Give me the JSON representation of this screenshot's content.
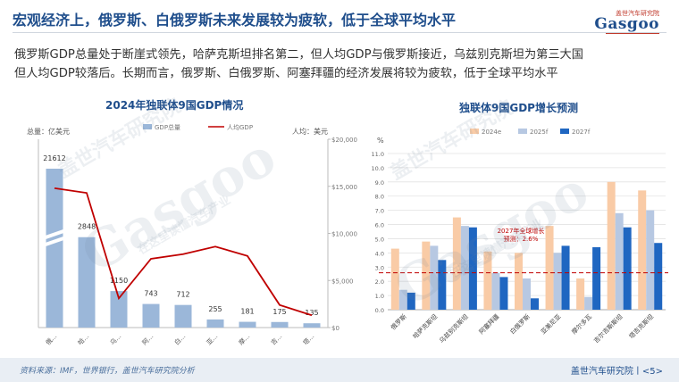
{
  "header": {
    "title": "宏观经济上，俄罗斯、白俄罗斯未来发展较为疲软，低于全球平均水平",
    "logo_top": "盖世汽车研究院",
    "logo_word": "Gasgoo"
  },
  "summary": [
    "俄罗斯GDP总量处于断崖式领先，哈萨克斯坦排名第二，但人均GDP与俄罗斯接近，乌兹别克斯坦为第三大国",
    "但人均GDP较落后。长期而言，俄罗斯、白俄罗斯、阿塞拜疆的经济发展将较为疲软，低于全球平均水平"
  ],
  "colors": {
    "title_blue": "#1f4e8c",
    "gdp_bar": "#9bb7d9",
    "per_capita_line": "#c00000",
    "growth_2024": "#f9cba6",
    "growth_2025": "#b7c8e2",
    "growth_2027": "#1f66c1",
    "avg_line": "#c00000"
  },
  "chart_data": [
    {
      "type": "bar",
      "title": "2024年独联体9国GDP情况",
      "left_axis_label": "总量：亿美元",
      "right_axis_label": "人均：美元",
      "legend": {
        "placement": "top",
        "entries": [
          "GDP总量",
          "人均GDP"
        ]
      },
      "categories": [
        "俄…",
        "哈…",
        "乌…",
        "阿…",
        "白…",
        "亚…",
        "摩…",
        "吉…",
        "塔…"
      ],
      "series": [
        {
          "name": "GDP总量",
          "type": "bar",
          "axis": "left",
          "values": [
            21612,
            2848,
            1150,
            743,
            712,
            255,
            181,
            175,
            135
          ],
          "labels": [
            "21612",
            "2848",
            "1150",
            "743",
            "712",
            "255",
            "181",
            "175",
            "135"
          ]
        },
        {
          "name": "人均GDP",
          "type": "line",
          "axis": "right",
          "values": [
            14800,
            14300,
            3100,
            7300,
            7800,
            8600,
            7600,
            2400,
            1300
          ]
        }
      ],
      "right_ticks": [
        "$0",
        "$5,000",
        "$10,000",
        "$15,000",
        "$20,000"
      ],
      "right_ylim": [
        0,
        20000
      ],
      "left_axis_break": true,
      "grid": false
    },
    {
      "type": "bar",
      "title": "独联体9国GDP增长预测",
      "ylabel": "%",
      "legend": {
        "placement": "top",
        "entries": [
          "2024e",
          "2025f",
          "2027f"
        ]
      },
      "categories": [
        "俄罗斯",
        "哈萨克斯坦",
        "乌兹别克斯坦",
        "阿塞拜疆",
        "白俄罗斯",
        "亚美尼亚",
        "摩尔多瓦",
        "吉尔吉斯斯坦",
        "塔吉克斯坦"
      ],
      "series": [
        {
          "name": "2024e",
          "values": [
            4.3,
            4.8,
            6.5,
            4.1,
            4.0,
            5.9,
            2.2,
            9.0,
            8.4
          ]
        },
        {
          "name": "2025f",
          "values": [
            1.4,
            4.5,
            5.9,
            2.6,
            2.2,
            4.0,
            0.9,
            6.8,
            7.0
          ]
        },
        {
          "name": "2027f",
          "values": [
            1.2,
            3.5,
            5.8,
            2.3,
            0.8,
            4.5,
            4.4,
            5.8,
            4.7
          ]
        }
      ],
      "reference_line": {
        "value": 2.6,
        "label_line1": "2027年全球增长",
        "label_line2": "预测：2.6%"
      },
      "ylim": [
        0,
        11
      ],
      "yticks": [
        "0.0",
        "1.0",
        "2.0",
        "3.0",
        "4.0",
        "5.0",
        "6.0",
        "7.0",
        "8.0",
        "9.0",
        "10.0",
        "11.0"
      ],
      "grid": true
    }
  ],
  "footer": {
    "source": "资料来源：IMF，世界银行，盖世汽车研究院分析",
    "page": "盖世汽车研究院丨<5>"
  },
  "watermarks": [
    "盖世汽车研究院",
    "Gasgoo",
    "在这里读懂汽车产业"
  ]
}
